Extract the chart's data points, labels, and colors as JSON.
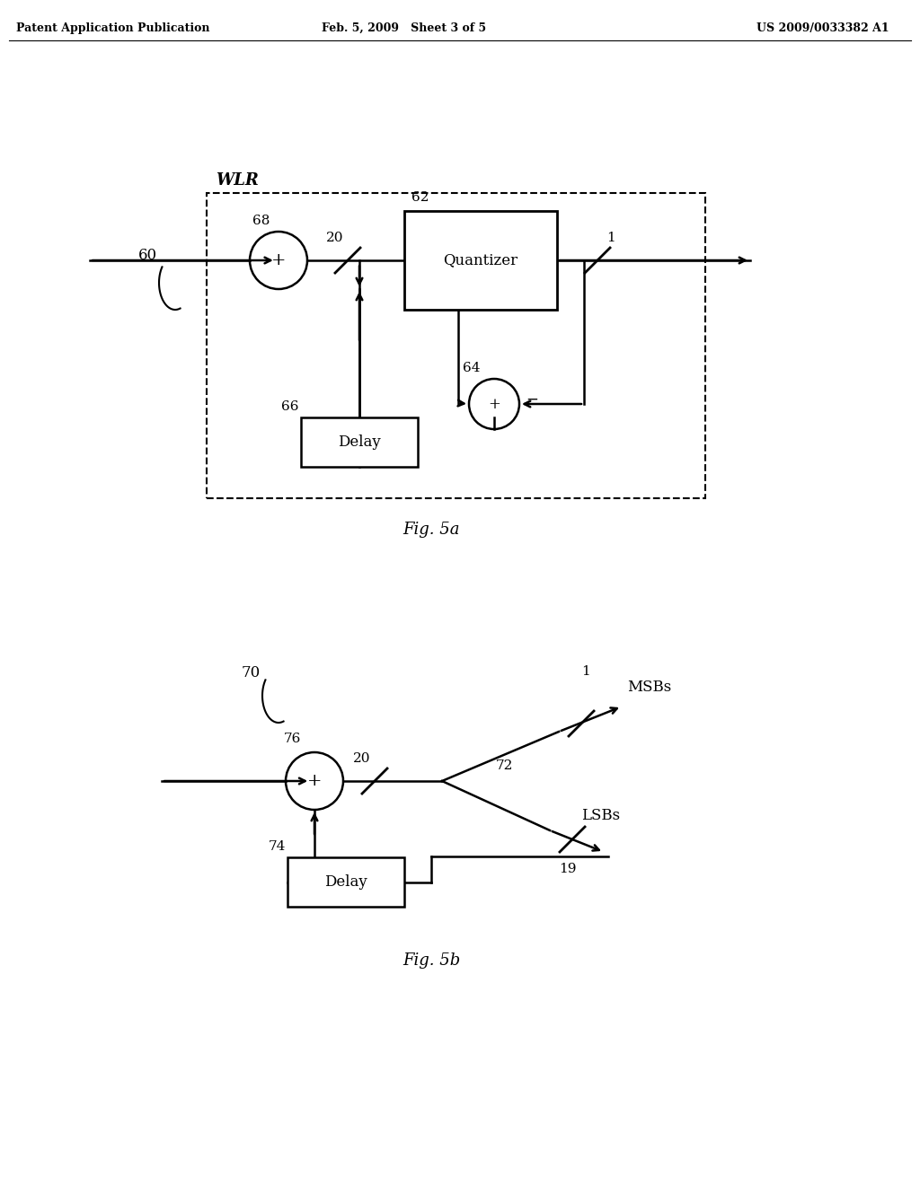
{
  "bg_color": "#ffffff",
  "header_left": "Patent Application Publication",
  "header_mid": "Feb. 5, 2009   Sheet 3 of 5",
  "header_right": "US 2009/0033382 A1",
  "fig5a_label": "Fig. 5a",
  "fig5b_label": "Fig. 5b",
  "wlr_label": "WLR",
  "msbs_label": "MSBs",
  "lsbs_label": "LSBs",
  "quantizer_label": "Quantizer",
  "delay_label_5a": "Delay",
  "delay_label_5b": "Delay"
}
